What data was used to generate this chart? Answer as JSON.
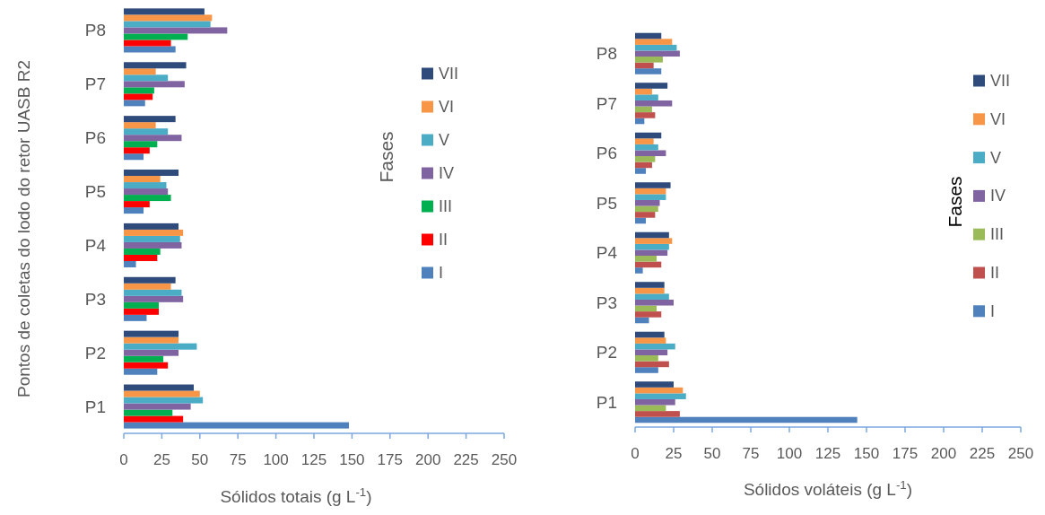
{
  "chart_data": [
    {
      "type": "bar",
      "orientation": "horizontal",
      "categories": [
        "P8",
        "P7",
        "P6",
        "P5",
        "P4",
        "P3",
        "P2",
        "P1"
      ],
      "series": [
        {
          "name": "I",
          "color": "#4f81bd",
          "values": [
            34,
            14,
            13,
            13,
            8,
            15,
            22,
            148
          ]
        },
        {
          "name": "II",
          "color": "#ff0000",
          "values": [
            31,
            19,
            17,
            17,
            22,
            23,
            29,
            39
          ]
        },
        {
          "name": "III",
          "color": "#00b050",
          "values": [
            42,
            20,
            22,
            31,
            24,
            23,
            26,
            32
          ]
        },
        {
          "name": "IV",
          "color": "#8064a2",
          "values": [
            68,
            40,
            38,
            29,
            38,
            39,
            36,
            44
          ]
        },
        {
          "name": "V",
          "color": "#4bacc6",
          "values": [
            57,
            29,
            29,
            28,
            37,
            38,
            48,
            52
          ]
        },
        {
          "name": "VI",
          "color": "#f79646",
          "values": [
            58,
            21,
            21,
            24,
            39,
            31,
            36,
            50
          ]
        },
        {
          "name": "VII",
          "color": "#2f4b7c",
          "values": [
            53,
            41,
            34,
            36,
            36,
            34,
            36,
            46
          ]
        }
      ],
      "xlim": [
        0,
        250
      ],
      "xticks": [
        0,
        25,
        50,
        75,
        100,
        125,
        150,
        175,
        200,
        225,
        250
      ],
      "xlabel": "Sólidos totais (g L$^{-1}$)",
      "ylabel": "Pontos de coletas do lodo do retor UASB R2",
      "legend_title": "Fases",
      "legend": "right"
    },
    {
      "type": "bar",
      "orientation": "horizontal",
      "categories": [
        "P8",
        "P7",
        "P6",
        "P5",
        "P4",
        "P3",
        "P2",
        "P1"
      ],
      "series": [
        {
          "name": "I",
          "color": "#4f81bd",
          "values": [
            17,
            6,
            7,
            7,
            5,
            9,
            15,
            144
          ]
        },
        {
          "name": "II",
          "color": "#c0504d",
          "values": [
            12,
            13,
            11,
            13,
            17,
            17,
            22,
            29
          ]
        },
        {
          "name": "III",
          "color": "#9bbb59",
          "values": [
            18,
            11,
            13,
            15,
            14,
            14,
            15,
            20
          ]
        },
        {
          "name": "IV",
          "color": "#8064a2",
          "values": [
            29,
            24,
            20,
            16,
            21,
            25,
            21,
            26
          ]
        },
        {
          "name": "V",
          "color": "#4bacc6",
          "values": [
            27,
            15,
            15,
            20,
            22,
            22,
            26,
            33
          ]
        },
        {
          "name": "VI",
          "color": "#f79646",
          "values": [
            24,
            11,
            12,
            20,
            24,
            19,
            20,
            31
          ]
        },
        {
          "name": "VII",
          "color": "#2f4b7c",
          "values": [
            17,
            21,
            17,
            23,
            22,
            19,
            19,
            25
          ]
        }
      ],
      "xlim": [
        0,
        250
      ],
      "xticks": [
        0,
        25,
        50,
        75,
        100,
        125,
        150,
        175,
        200,
        225,
        250
      ],
      "xlabel": "Sólidos voláteis (g L$^{-1}$)",
      "legend_title": "Fases",
      "legend": "right"
    }
  ]
}
